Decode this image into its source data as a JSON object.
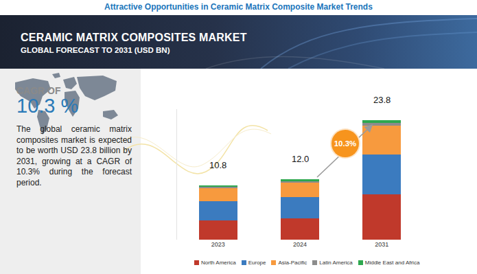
{
  "header": {
    "top_title": "Attractive Opportunities in Ceramic Matrix Composite Market Trends",
    "title": "CERAMIC MATRIX COMPOSITES MARKET",
    "subtitle": "GLOBAL FORECAST TO 2031 (USD BN)"
  },
  "side_panel": {
    "cagr_label": "CAGR OF",
    "cagr_value": "10.3 %",
    "text": "The global ceramic matrix composites market is expected to be worth USD 23.8 billion by 2031, growing at a CAGR of 10.3% during the forecast period."
  },
  "chart_data": {
    "type": "bar",
    "stacked": true,
    "categories": [
      "2023",
      "2024",
      "2031"
    ],
    "series": [
      {
        "name": "North America",
        "color": "#c0392b",
        "values": [
          3.8,
          4.3,
          9.0
        ]
      },
      {
        "name": "Europe",
        "color": "#3b7bbf",
        "values": [
          3.9,
          4.2,
          8.0
        ]
      },
      {
        "name": "Asia-Pacific",
        "color": "#f79a3e",
        "values": [
          2.5,
          2.8,
          5.7
        ]
      },
      {
        "name": "Latin America",
        "color": "#8c8c8c",
        "values": [
          0.3,
          0.4,
          0.5
        ]
      },
      {
        "name": "Middle East and Africa",
        "color": "#2ea84f",
        "values": [
          0.3,
          0.3,
          0.6
        ]
      }
    ],
    "totals": [
      10.8,
      12.0,
      23.8
    ],
    "total_labels": [
      "10.8",
      "12.0",
      "23.8"
    ],
    "annotation": "10.3%",
    "ylim": [
      0,
      26
    ],
    "yticks": [],
    "tick_labels": "x",
    "grid": false,
    "legend": "bottom"
  }
}
